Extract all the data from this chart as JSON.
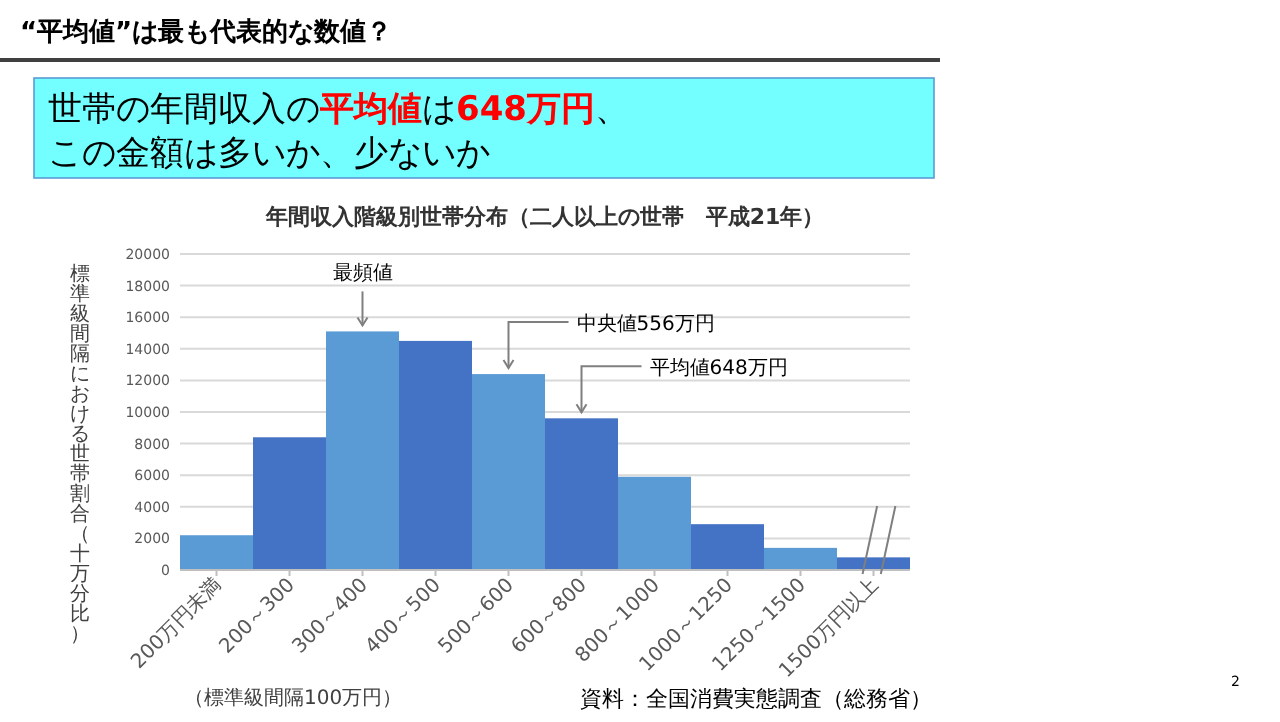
{
  "chart_data": {
    "type": "bar",
    "title": "年間収入階級別世帯分布（二人以上の世帯　平成21年）",
    "xlabel": "（標準級間隔100万円）",
    "ylabel": "標準級間隔における世帯割合（十万分比）",
    "categories": [
      "200万円未満",
      "200～300",
      "300～400",
      "400～500",
      "500～600",
      "600～800",
      "800～1000",
      "1000～1250",
      "1250～1500",
      "1500万円以上"
    ],
    "values": [
      2200,
      8400,
      15100,
      14500,
      12400,
      9600,
      5900,
      2900,
      1400,
      800
    ],
    "colors": [
      "#5b9bd5",
      "#4472c4",
      "#5b9bd5",
      "#4472c4",
      "#5b9bd5",
      "#4472c4",
      "#5b9bd5",
      "#4472c4",
      "#5b9bd5",
      "#4472c4"
    ],
    "ylim": [
      0,
      20000
    ],
    "yticks": [
      0,
      2000,
      4000,
      6000,
      8000,
      10000,
      12000,
      14000,
      16000,
      18000,
      20000
    ],
    "grid": "y",
    "annotations": [
      "“平均値”は最も代表的な数値？",
      "世帯の年間収入の",
      "平均値",
      "は",
      "648万円",
      "、",
      "この金額は多いか、少ないか",
      {
        "text": "最頻値",
        "x": "300～400",
        "y": 15100
      },
      {
        "text": "中央値556万円",
        "x": "500～600",
        "y": 12400
      },
      {
        "text": "平均値648万円",
        "x": "600～800",
        "y": 9600
      },
      "資料：全国消費実態調査（総務省）",
      "2"
    ]
  }
}
